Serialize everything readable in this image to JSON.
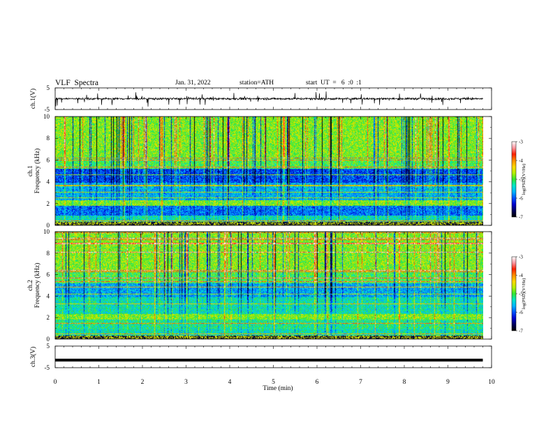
{
  "header": {
    "title": "VLF  Spectra",
    "date": "Jan. 31, 2022",
    "station": "station=ATH",
    "start": "start  UT  =   6  :0  :1"
  },
  "colors": {
    "colormap": [
      "#000000",
      "#00005a",
      "#0000cd",
      "#0050ff",
      "#00b4ff",
      "#00e6c8",
      "#32e632",
      "#b4f000",
      "#ffd700",
      "#ff8c00",
      "#ff1e00",
      "#ff96a0",
      "#ffffff"
    ]
  },
  "chart_data": [
    {
      "type": "line",
      "ylabel": "ch.1(V)",
      "yticks": [
        "5",
        "-5"
      ],
      "ylim": [
        -5,
        5
      ],
      "xlim": [
        0,
        10
      ],
      "data_extent_min": 9.8,
      "signal": {
        "baseline": 0.0,
        "noise": "broadband with impulsive spikes",
        "spike_range": [
          -4,
          4
        ]
      }
    },
    {
      "type": "heatmap",
      "ylabel": "ch.1\nFrequency (kHz)",
      "yticks": [
        "0",
        "2",
        "4",
        "6",
        "8",
        "10"
      ],
      "ylim": [
        0,
        10
      ],
      "xlim": [
        0,
        10
      ],
      "data_extent_min": 9.8,
      "colorbar": {
        "label": "log(PSD)(V²/Hz)",
        "ticks": [
          "-3",
          "-4",
          "-5",
          "-6",
          "-7"
        ],
        "range": [
          -7,
          -3
        ]
      }
    },
    {
      "type": "heatmap",
      "ylabel": "ch.2\nFrequency (kHz)",
      "yticks": [
        "0",
        "2",
        "4",
        "6",
        "8",
        "10"
      ],
      "ylim": [
        0,
        10
      ],
      "xlim": [
        0,
        10
      ],
      "data_extent_min": 9.8,
      "colorbar": {
        "label": "log(PSD)(V²/Hz)",
        "ticks": [
          "-3",
          "-4",
          "-5",
          "-6",
          "-7"
        ],
        "range": [
          -7,
          -3
        ]
      }
    },
    {
      "type": "line",
      "ylabel": "ch.3(V)",
      "yticks": [
        "5",
        "-5"
      ],
      "ylim": [
        -5,
        5
      ],
      "xlim": [
        0,
        10
      ],
      "data_extent_min": 9.8,
      "signal": {
        "baseline": -1.5,
        "noise": "near-constant level"
      }
    }
  ],
  "xaxis": {
    "label": "Time  (min)",
    "ticks": [
      "0",
      "1",
      "2",
      "3",
      "4",
      "5",
      "6",
      "7",
      "8",
      "9",
      "10"
    ]
  }
}
